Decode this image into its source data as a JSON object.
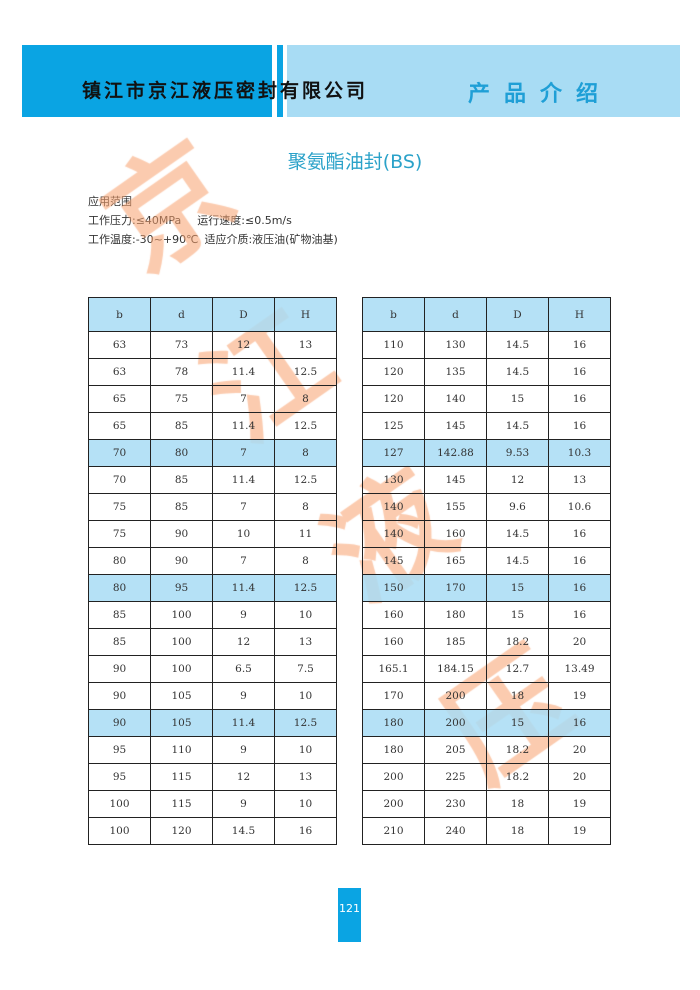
{
  "header": {
    "company": "镇江市京江液压密封有限公司",
    "section": "产品介绍"
  },
  "title": "聚氨酯油封(BS)",
  "specs": {
    "heading": "应用范围",
    "pressure": "工作压力:≤40MPa",
    "speed": "运行速度:≤0.5m/s",
    "temperature": "工作温度:-30~+90℃",
    "medium": "适应介质:液压油(矿物油基)"
  },
  "watermark": [
    "京",
    "江",
    "液",
    "压"
  ],
  "colors": {
    "brand_blue": "#0aa4e3",
    "light_blue": "#a8dcf4",
    "title": "#2ba2c9",
    "watermark": "#f7a06e"
  },
  "tables": [
    {
      "columns": [
        "b",
        "d",
        "D",
        "H"
      ],
      "highlight_rows": [
        4,
        9,
        14
      ],
      "rows": [
        [
          "63",
          "73",
          "12",
          "13"
        ],
        [
          "63",
          "78",
          "11.4",
          "12.5"
        ],
        [
          "65",
          "75",
          "7",
          "8"
        ],
        [
          "65",
          "85",
          "11.4",
          "12.5"
        ],
        [
          "70",
          "80",
          "7",
          "8"
        ],
        [
          "70",
          "85",
          "11.4",
          "12.5"
        ],
        [
          "75",
          "85",
          "7",
          "8"
        ],
        [
          "75",
          "90",
          "10",
          "11"
        ],
        [
          "80",
          "90",
          "7",
          "8"
        ],
        [
          "80",
          "95",
          "11.4",
          "12.5"
        ],
        [
          "85",
          "100",
          "9",
          "10"
        ],
        [
          "85",
          "100",
          "12",
          "13"
        ],
        [
          "90",
          "100",
          "6.5",
          "7.5"
        ],
        [
          "90",
          "105",
          "9",
          "10"
        ],
        [
          "90",
          "105",
          "11.4",
          "12.5"
        ],
        [
          "95",
          "110",
          "9",
          "10"
        ],
        [
          "95",
          "115",
          "12",
          "13"
        ],
        [
          "100",
          "115",
          "9",
          "10"
        ],
        [
          "100",
          "120",
          "14.5",
          "16"
        ]
      ]
    },
    {
      "columns": [
        "b",
        "d",
        "D",
        "H"
      ],
      "highlight_rows": [
        4,
        9,
        14
      ],
      "rows": [
        [
          "110",
          "130",
          "14.5",
          "16"
        ],
        [
          "120",
          "135",
          "14.5",
          "16"
        ],
        [
          "120",
          "140",
          "15",
          "16"
        ],
        [
          "125",
          "145",
          "14.5",
          "16"
        ],
        [
          "127",
          "142.88",
          "9.53",
          "10.3"
        ],
        [
          "130",
          "145",
          "12",
          "13"
        ],
        [
          "140",
          "155",
          "9.6",
          "10.6"
        ],
        [
          "140",
          "160",
          "14.5",
          "16"
        ],
        [
          "145",
          "165",
          "14.5",
          "16"
        ],
        [
          "150",
          "170",
          "15",
          "16"
        ],
        [
          "160",
          "180",
          "15",
          "16"
        ],
        [
          "160",
          "185",
          "18.2",
          "20"
        ],
        [
          "165.1",
          "184.15",
          "12.7",
          "13.49"
        ],
        [
          "170",
          "200",
          "18",
          "19"
        ],
        [
          "180",
          "200",
          "15",
          "16"
        ],
        [
          "180",
          "205",
          "18.2",
          "20"
        ],
        [
          "200",
          "225",
          "18.2",
          "20"
        ],
        [
          "200",
          "230",
          "18",
          "19"
        ],
        [
          "210",
          "240",
          "18",
          "19"
        ]
      ]
    }
  ],
  "page_number": "121"
}
